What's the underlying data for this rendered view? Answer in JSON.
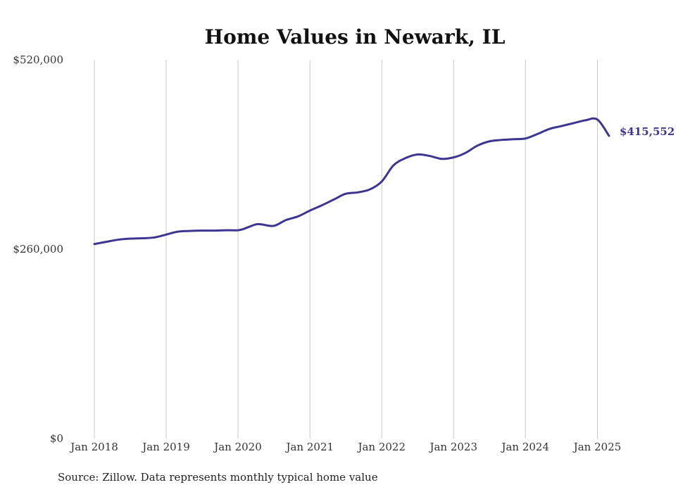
{
  "chart_data": {
    "type": "line",
    "title": "Home Values in Newark, IL",
    "xlabel": "",
    "ylabel": "",
    "source": "Source: Zillow. Data represents monthly typical home value",
    "ylim": [
      0,
      520000
    ],
    "yticks": [
      {
        "value": 0,
        "label": "$0"
      },
      {
        "value": 260000,
        "label": "$260,000"
      },
      {
        "value": 520000,
        "label": "$520,000"
      }
    ],
    "xticks": [
      {
        "value": "2018-01",
        "label": "Jan 2018"
      },
      {
        "value": "2019-01",
        "label": "Jan 2019"
      },
      {
        "value": "2020-01",
        "label": "Jan 2020"
      },
      {
        "value": "2021-01",
        "label": "Jan 2021"
      },
      {
        "value": "2022-01",
        "label": "Jan 2022"
      },
      {
        "value": "2023-01",
        "label": "Jan 2023"
      },
      {
        "value": "2024-01",
        "label": "Jan 2024"
      },
      {
        "value": "2025-01",
        "label": "Jan 2025"
      }
    ],
    "grid": {
      "vertical": true,
      "horizontal": false
    },
    "end_label": "$415,552",
    "line_color": "#3d3590",
    "series": [
      {
        "x": [
          "2018-01",
          "2018-03",
          "2018-05",
          "2018-07",
          "2018-09",
          "2018-11",
          "2019-01",
          "2019-03",
          "2019-05",
          "2019-07",
          "2019-09",
          "2019-11",
          "2020-01",
          "2020-02",
          "2020-04",
          "2020-05",
          "2020-07",
          "2020-09",
          "2020-11",
          "2021-01",
          "2021-03",
          "2021-05",
          "2021-07",
          "2021-09",
          "2021-11",
          "2022-01",
          "2022-03",
          "2022-05",
          "2022-07",
          "2022-09",
          "2022-11",
          "2023-01",
          "2023-03",
          "2023-05",
          "2023-07",
          "2023-09",
          "2023-11",
          "2024-01",
          "2024-03",
          "2024-05",
          "2024-07",
          "2024-09",
          "2024-11",
          "2025-01",
          "2025-03"
        ],
        "values": [
          267000,
          270000,
          273000,
          274500,
          275000,
          276000,
          280000,
          284000,
          285000,
          285500,
          285500,
          286000,
          286000,
          288000,
          294000,
          294000,
          292000,
          300000,
          305000,
          313000,
          320000,
          328000,
          336000,
          338000,
          342000,
          353000,
          375000,
          385000,
          390000,
          388000,
          384000,
          386000,
          392000,
          402000,
          408000,
          410000,
          411000,
          412000,
          418000,
          425000,
          429000,
          433000,
          437000,
          438000,
          415552
        ]
      }
    ]
  }
}
